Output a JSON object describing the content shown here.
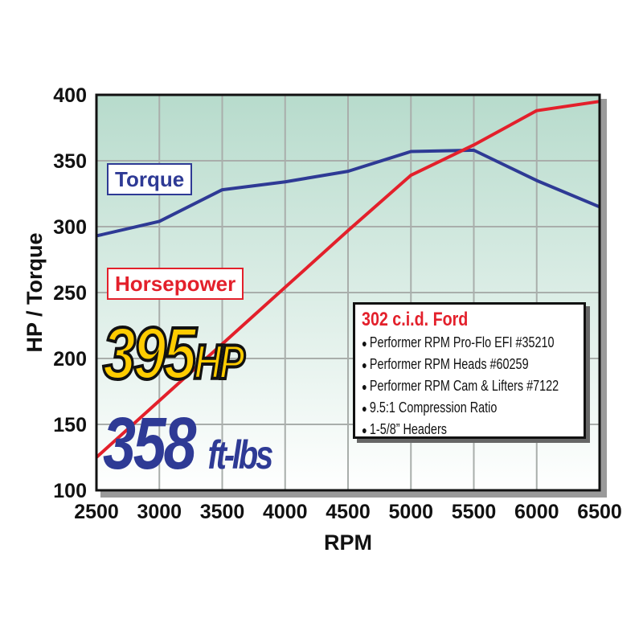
{
  "chart_data": {
    "type": "line",
    "xlabel": "RPM",
    "ylabel": "HP / Torque",
    "xlim": [
      2500,
      6500
    ],
    "ylim": [
      100,
      400
    ],
    "x_ticks": [
      2500,
      3000,
      3500,
      4000,
      4500,
      5000,
      5500,
      6000,
      6500
    ],
    "y_ticks": [
      100,
      150,
      200,
      250,
      300,
      350,
      400
    ],
    "grid": true,
    "x": [
      2500,
      3000,
      3500,
      4000,
      4500,
      5000,
      5500,
      6000,
      6500
    ],
    "series": [
      {
        "name": "Torque",
        "color": "#2e3a95",
        "values": [
          293,
          304,
          328,
          334,
          342,
          357,
          358,
          335,
          315
        ]
      },
      {
        "name": "Horsepower",
        "color": "#e3202b",
        "values": [
          125,
          168,
          211,
          254,
          297,
          339,
          362,
          388,
          395
        ]
      }
    ],
    "background": {
      "top": "#b7dbcc",
      "bottom": "#ffffff"
    },
    "annotations": {
      "hp_peak": "395",
      "hp_unit": "HP",
      "torque_peak": "358",
      "torque_unit": "ft-lbs"
    },
    "spec_box": {
      "title": "302 c.i.d. Ford",
      "items": [
        "Performer RPM Pro-Flo EFI #35210",
        "Performer RPM Heads #60259",
        "Performer RPM Cam & Lifters #7122",
        "9.5:1 Compression Ratio",
        "1-5/8” Headers"
      ]
    }
  }
}
